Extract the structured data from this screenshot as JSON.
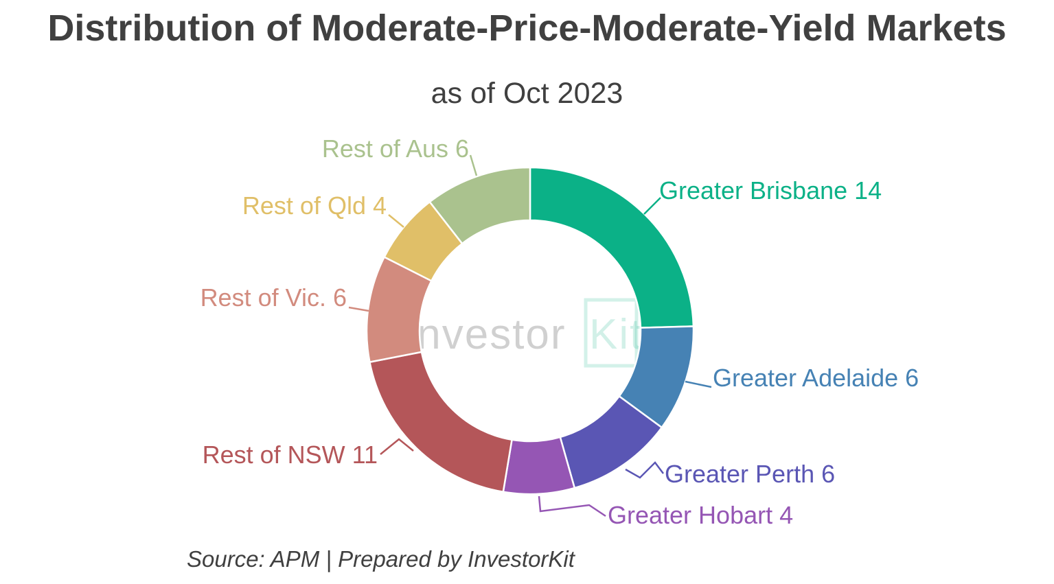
{
  "chart_data": {
    "type": "pie",
    "style": "donut",
    "title": "Distribution of Moderate-Price-Moderate-Yield Markets",
    "subtitle": "as of Oct 2023",
    "source": "Source: APM | Prepared by InvestorKit",
    "watermark": {
      "part1": "Investor",
      "part2": "Kit"
    },
    "slices": [
      {
        "label": "Greater Brisbane",
        "value": 14,
        "display": "Greater Brisbane 14",
        "color": "#0bb187"
      },
      {
        "label": "Greater Adelaide",
        "value": 6,
        "display": "Greater Adelaide 6",
        "color": "#4682b4"
      },
      {
        "label": "Greater Perth",
        "value": 6,
        "display": "Greater Perth 6",
        "color": "#5a56b4"
      },
      {
        "label": "Greater Hobart",
        "value": 4,
        "display": "Greater Hobart 4",
        "color": "#9556b4"
      },
      {
        "label": "Rest of NSW",
        "value": 11,
        "display": "Rest of NSW 11",
        "color": "#b45659"
      },
      {
        "label": "Rest of Vic.",
        "value": 6,
        "display": "Rest of Vic. 6",
        "color": "#d28b7e"
      },
      {
        "label": "Rest of Qld",
        "value": 4,
        "display": "Rest of Qld 4",
        "color": "#e0bf68"
      },
      {
        "label": "Rest of Aus",
        "value": 6,
        "display": "Rest of Aus 6",
        "color": "#aac28e"
      }
    ],
    "legend": "none"
  }
}
